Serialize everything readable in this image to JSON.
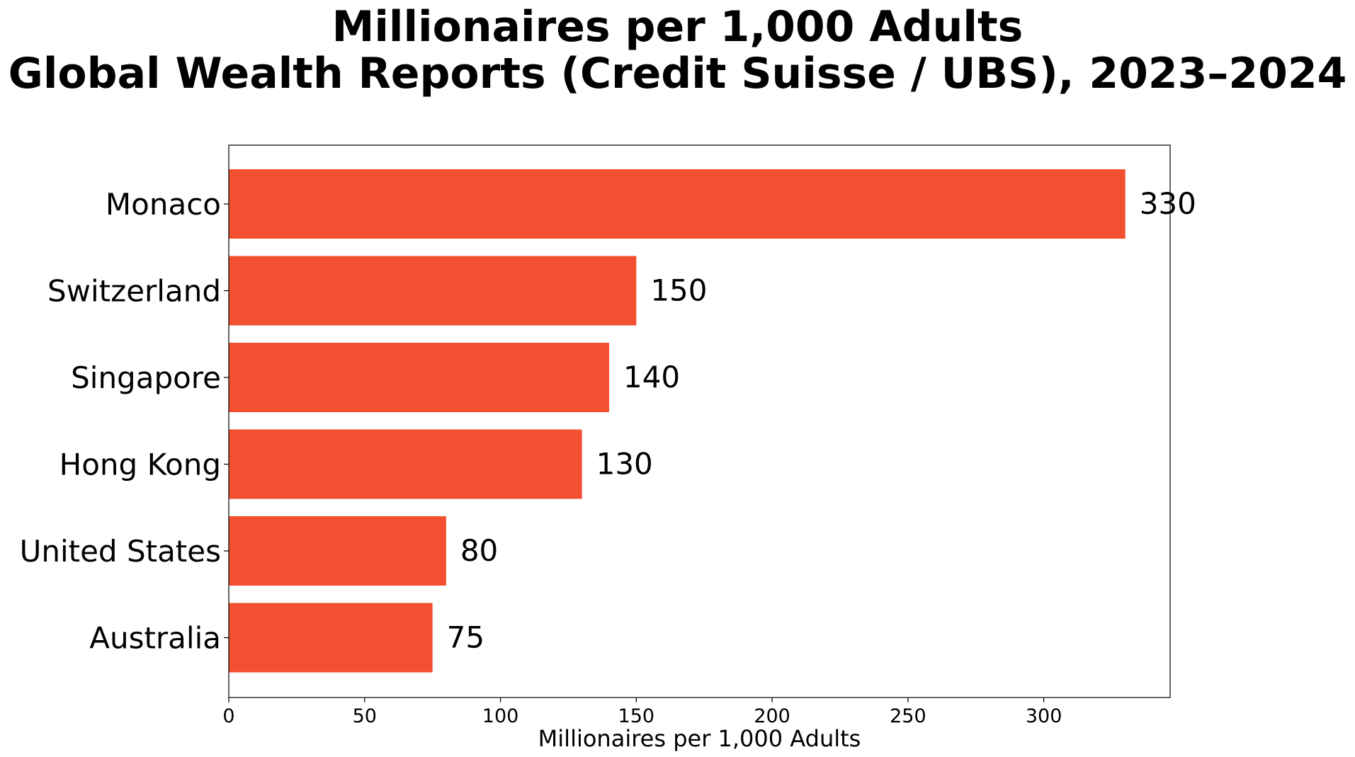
{
  "chart_data": {
    "type": "bar",
    "orientation": "horizontal",
    "title": "Millionaires per 1,000 Adults",
    "subtitle": "Global Wealth Reports (Credit Suisse / UBS), 2023–2024",
    "xlabel": "Millionaires per 1,000 Adults",
    "ylabel": "",
    "categories": [
      "Monaco",
      "Switzerland",
      "Singapore",
      "Hong Kong",
      "United States",
      "Australia"
    ],
    "values": [
      330,
      150,
      140,
      130,
      80,
      75
    ],
    "data_labels": [
      "330",
      "150",
      "140",
      "130",
      "80",
      "75"
    ],
    "xlim": [
      0,
      346.5
    ],
    "xticks": [
      0,
      50,
      100,
      150,
      200,
      250,
      300
    ],
    "xtick_labels": [
      "0",
      "50",
      "100",
      "150",
      "200",
      "250",
      "300"
    ],
    "grid": false,
    "legend": "none",
    "bar_color": "#f25030"
  }
}
